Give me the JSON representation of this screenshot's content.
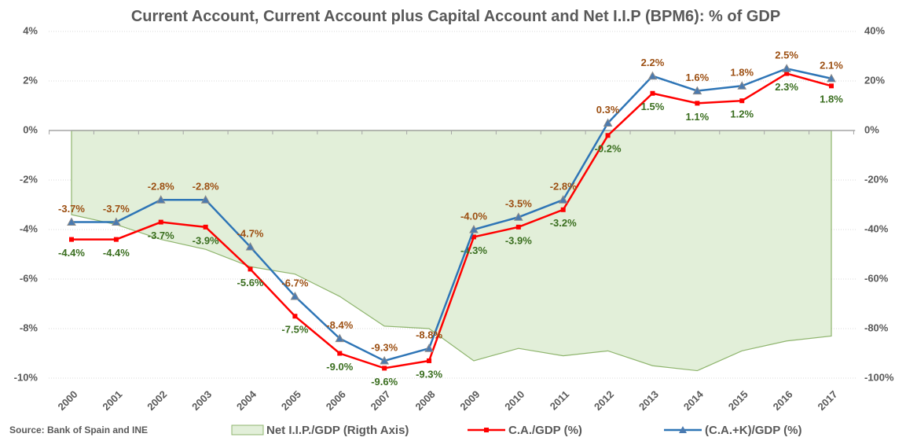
{
  "chart_data": {
    "type": "line",
    "title": "Current Account, Current Account plus Capital Account and Net I.I.P (BPM6): % of GDP",
    "source": "Source: Bank of Spain and INE",
    "categories": [
      "2000",
      "2001",
      "2002",
      "2003",
      "2004",
      "2005",
      "2006",
      "2007",
      "2008",
      "2009",
      "2010",
      "2011",
      "2012",
      "2013",
      "2014",
      "2015",
      "2016",
      "2017"
    ],
    "ylim": [
      -10,
      4
    ],
    "yticks": [
      {
        "value": -10,
        "label": "-10%"
      },
      {
        "value": -8,
        "label": "-8%"
      },
      {
        "value": -6,
        "label": "-6%"
      },
      {
        "value": -4,
        "label": "-4%"
      },
      {
        "value": -2,
        "label": "-2%"
      },
      {
        "value": 0,
        "label": "0%"
      },
      {
        "value": 2,
        "label": "2%"
      },
      {
        "value": 4,
        "label": "4%"
      }
    ],
    "y2lim": [
      -100,
      40
    ],
    "y2ticks": [
      {
        "value": -100,
        "label": "-100%"
      },
      {
        "value": -80,
        "label": "-80%"
      },
      {
        "value": -60,
        "label": "-60%"
      },
      {
        "value": -40,
        "label": "-40%"
      },
      {
        "value": -20,
        "label": "-20%"
      },
      {
        "value": 0,
        "label": "0%"
      },
      {
        "value": 20,
        "label": "20%"
      },
      {
        "value": 40,
        "label": "40%"
      }
    ],
    "grid": true,
    "series": [
      {
        "name": "Net I.I.P./GDP (Rigth Axis)",
        "type": "area",
        "axis": "y2",
        "color": "#e2efd9",
        "values": [
          -34,
          -38,
          -44,
          -48,
          -55,
          -58,
          -67,
          -79,
          -80,
          -93,
          -88,
          -91,
          -89,
          -95,
          -97,
          -89,
          -85,
          -83
        ]
      },
      {
        "name": "C.A./GDP (%)",
        "type": "line",
        "color": "#ff0000",
        "label_color": "#3a6e1f",
        "values": [
          -4.4,
          -4.4,
          -3.7,
          -3.9,
          -5.6,
          -7.5,
          -9.0,
          -9.6,
          -9.3,
          -4.3,
          -3.9,
          -3.2,
          -0.2,
          1.5,
          1.1,
          1.2,
          2.3,
          1.8
        ],
        "value_labels": [
          "-4.4%",
          "-4.4%",
          "-3.7%",
          "-3.9%",
          "-5.6%",
          "-7.5%",
          "-9.0%",
          "-9.6%",
          "-9.3%",
          "-4.3%",
          "-3.9%",
          "-3.2%",
          "-0.2%",
          "1.5%",
          "1.1%",
          "1.2%",
          "2.3%",
          "1.8%"
        ]
      },
      {
        "name": "(C.A.+K)/GDP (%)",
        "type": "line",
        "color": "#2e75b6",
        "label_color": "#9c4f12",
        "values": [
          -3.7,
          -3.7,
          -2.8,
          -2.8,
          -4.7,
          -6.7,
          -8.4,
          -9.3,
          -8.8,
          -4.0,
          -3.5,
          -2.8,
          0.3,
          2.2,
          1.6,
          1.8,
          2.5,
          2.1
        ],
        "value_labels": [
          "-3.7%",
          "-3.7%",
          "-2.8%",
          "-2.8%",
          "-4.7%",
          "-6.7%",
          "-8.4%",
          "-9.3%",
          "-8.8%",
          "-4.0%",
          "-3.5%",
          "-2.8%",
          "0.3%",
          "2.2%",
          "1.6%",
          "1.8%",
          "2.5%",
          "2.1%"
        ]
      }
    ]
  }
}
